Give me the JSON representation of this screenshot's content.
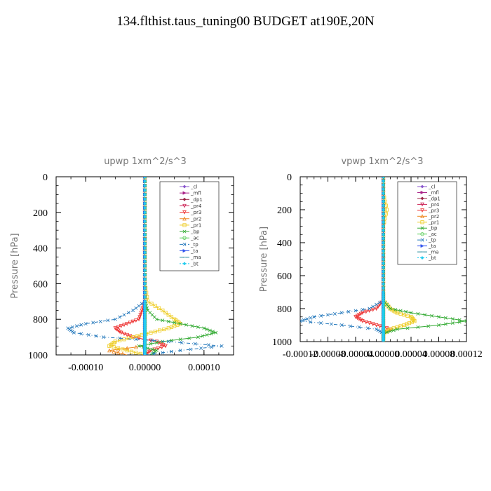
{
  "title": "134.flthist.taus_tuning00  BUDGET at190E,20N",
  "chart_data": [
    {
      "type": "line",
      "title": "upwp   1xm^2/s^3",
      "ylabel": "Pressure  [hPa]",
      "xlim": [
        -0.00015,
        0.00015
      ],
      "ylim": [
        1000,
        0
      ],
      "xticks": [
        -0.0001,
        0.0,
        0.0001
      ],
      "xtick_labels": [
        "-0.00010",
        "0.00000",
        "0.00010"
      ],
      "yticks": [
        0,
        200,
        400,
        600,
        800,
        1000
      ],
      "ytick_labels": [
        "0",
        "200",
        "400",
        "600",
        "800",
        "1000"
      ],
      "legend_position": "top-right",
      "pressure": [
        0,
        100,
        200,
        300,
        400,
        500,
        600,
        700,
        750,
        800,
        825,
        850,
        875,
        900,
        925,
        950,
        975,
        1000
      ],
      "series": [
        {
          "name": "_cl",
          "color": "#8855cc",
          "values": [
            0,
            0,
            0,
            0,
            0,
            0,
            0,
            0,
            0,
            0,
            0,
            0,
            0,
            0,
            0,
            0,
            0,
            0
          ]
        },
        {
          "name": "_mfl",
          "color": "#aa2288",
          "values": [
            0,
            0,
            0,
            0,
            0,
            0,
            0,
            0,
            0,
            0,
            0,
            0,
            0,
            0,
            0,
            0,
            0,
            0
          ]
        },
        {
          "name": "_dp1",
          "color": "#992244",
          "values": [
            0,
            0,
            0,
            0,
            0,
            0,
            0,
            0,
            0,
            0,
            0,
            0,
            0,
            0,
            0,
            0,
            0,
            0
          ]
        },
        {
          "name": "_pr4",
          "color": "#cc2255",
          "values": [
            0,
            0,
            0,
            0,
            0,
            0,
            0,
            0,
            0,
            0,
            0,
            0,
            0,
            0,
            0,
            0,
            0,
            0
          ]
        },
        {
          "name": "_pr3",
          "color": "#ee3333",
          "values": [
            0,
            0,
            0,
            0,
            0,
            0,
            0,
            0,
            -5e-06,
            -1e-05,
            -3e-05,
            -5e-05,
            -4e-05,
            -2e-05,
            2e-05,
            3.5e-05,
            1e-05,
            0
          ]
        },
        {
          "name": "_pr2",
          "color": "#ee8822",
          "values": [
            0,
            0,
            0,
            0,
            0,
            0,
            0,
            0,
            0,
            0,
            0,
            0,
            0,
            0,
            0,
            0,
            -6e-05,
            -3e-05
          ]
        },
        {
          "name": "_pr1",
          "color": "#eecc22",
          "values": [
            0,
            0,
            0,
            0,
            0,
            0,
            0,
            5e-06,
            3e-05,
            5e-05,
            6e-05,
            4e-05,
            1e-05,
            -2e-05,
            -5e-05,
            -6e-05,
            -3e-05,
            0
          ]
        },
        {
          "name": "_bp",
          "color": "#33aa33",
          "values": [
            0,
            0,
            0,
            0,
            0,
            0,
            0,
            0,
            5e-06,
            2e-05,
            6e-05,
            0.0001,
            0.00012,
            9e-05,
            3e-05,
            -1e-05,
            2e-05,
            1e-05
          ]
        },
        {
          "name": "_ac",
          "color": "#55cc55",
          "values": [
            0,
            0,
            0,
            0,
            0,
            0,
            0,
            0,
            0,
            0,
            0,
            0,
            0,
            0,
            0,
            0,
            0,
            0
          ]
        },
        {
          "name": "_tp",
          "color": "#2277bb",
          "values": [
            0,
            0,
            0,
            0,
            0,
            0,
            0,
            0,
            -2e-05,
            -5e-05,
            -0.0001,
            -0.00013,
            -0.00012,
            -7e-05,
            4e-05,
            0.00013,
            6e-05,
            0
          ]
        },
        {
          "name": "_ta",
          "color": "#3355ee",
          "values": [
            0,
            0,
            0,
            0,
            0,
            0,
            0,
            0,
            0,
            0,
            0,
            0,
            0,
            0,
            0,
            0,
            0,
            0
          ]
        },
        {
          "name": "_ma",
          "color": "#228899",
          "values": [
            0,
            0,
            0,
            0,
            0,
            0,
            0,
            0,
            0,
            0,
            0,
            0,
            0,
            0,
            0,
            0,
            0,
            0
          ]
        },
        {
          "name": "_bt",
          "color": "#22ccee",
          "values": [
            0,
            0,
            0,
            0,
            0,
            0,
            0,
            0,
            0,
            0,
            0,
            0,
            0,
            0,
            0,
            0,
            0,
            0
          ]
        }
      ]
    },
    {
      "type": "line",
      "title": "vpwp   1xm^2/s^3",
      "ylabel": "Pressure  [hPa]",
      "xlim": [
        -0.00012,
        0.00012
      ],
      "ylim": [
        1000,
        0
      ],
      "xticks": [
        -0.00012,
        -8e-05,
        -4e-05,
        0.0,
        4e-05,
        8e-05,
        0.00012
      ],
      "xtick_labels": [
        "-0.00012",
        "-0.00008",
        "-0.00004",
        "0.00000",
        "0.00004",
        "0.00008",
        "0.00012"
      ],
      "yticks": [
        0,
        200,
        400,
        600,
        800,
        1000
      ],
      "ytick_labels": [
        "0",
        "200",
        "400",
        "600",
        "800",
        "1000"
      ],
      "legend_position": "top-right",
      "pressure": [
        0,
        100,
        200,
        300,
        400,
        500,
        600,
        700,
        750,
        800,
        825,
        850,
        875,
        900,
        925,
        950,
        975,
        1000
      ],
      "series": [
        {
          "name": "_cl",
          "color": "#8855cc",
          "values": [
            0,
            0,
            0,
            0,
            0,
            0,
            0,
            0,
            0,
            0,
            0,
            0,
            0,
            0,
            0,
            0,
            0,
            0
          ]
        },
        {
          "name": "_mfl",
          "color": "#aa2288",
          "values": [
            0,
            0,
            0,
            0,
            0,
            0,
            0,
            0,
            0,
            0,
            0,
            0,
            0,
            0,
            0,
            0,
            0,
            0
          ]
        },
        {
          "name": "_dp1",
          "color": "#992244",
          "values": [
            0,
            0,
            0,
            0,
            0,
            0,
            0,
            0,
            0,
            0,
            0,
            0,
            0,
            0,
            0,
            0,
            0,
            0
          ]
        },
        {
          "name": "_pr4",
          "color": "#cc2255",
          "values": [
            0,
            0,
            0,
            0,
            0,
            0,
            0,
            0,
            0,
            0,
            0,
            0,
            0,
            0,
            0,
            0,
            0,
            0
          ]
        },
        {
          "name": "_pr3",
          "color": "#ee3333",
          "values": [
            0,
            0,
            0,
            0,
            0,
            0,
            0,
            0,
            0,
            -1e-05,
            -3e-05,
            -4e-05,
            -3e-05,
            -1e-05,
            1e-05,
            0,
            0,
            0
          ]
        },
        {
          "name": "_pr2",
          "color": "#ee8822",
          "values": [
            0,
            0,
            0,
            0,
            0,
            0,
            0,
            0,
            0,
            0,
            0,
            0,
            0,
            0,
            0,
            0,
            0,
            0
          ]
        },
        {
          "name": "_pr1",
          "color": "#eecc22",
          "values": [
            0,
            0,
            5e-06,
            0,
            0,
            0,
            0,
            0,
            0,
            1e-05,
            2e-05,
            4e-05,
            4.5e-05,
            3e-05,
            1e-05,
            0,
            0,
            0
          ]
        },
        {
          "name": "_bp",
          "color": "#33aa33",
          "values": [
            0,
            0,
            0,
            0,
            0,
            0,
            0,
            0,
            0,
            1e-05,
            4e-05,
            8e-05,
            0.00012,
            8e-05,
            2e-05,
            0,
            0,
            0
          ]
        },
        {
          "name": "_ac",
          "color": "#55cc55",
          "values": [
            0,
            0,
            0,
            0,
            0,
            0,
            0,
            0,
            0,
            0,
            0,
            0,
            0,
            0,
            0,
            0,
            0,
            0
          ]
        },
        {
          "name": "_tp",
          "color": "#2277bb",
          "values": [
            0,
            0,
            0,
            0,
            0,
            0,
            0,
            0,
            0,
            -2e-05,
            -6e-05,
            -0.0001,
            -0.00012,
            -6e-05,
            -1e-05,
            0,
            0,
            0
          ]
        },
        {
          "name": "_ta",
          "color": "#3355ee",
          "values": [
            0,
            0,
            0,
            0,
            0,
            0,
            0,
            0,
            0,
            0,
            0,
            0,
            0,
            0,
            0,
            0,
            0,
            0
          ]
        },
        {
          "name": "_ma",
          "color": "#228899",
          "values": [
            0,
            0,
            0,
            0,
            0,
            0,
            0,
            0,
            0,
            0,
            0,
            0,
            0,
            0,
            0,
            0,
            0,
            0
          ]
        },
        {
          "name": "_bt",
          "color": "#22ccee",
          "values": [
            0,
            0,
            0,
            0,
            0,
            0,
            0,
            0,
            0,
            0,
            0,
            0,
            0,
            0,
            0,
            0,
            0,
            0
          ]
        }
      ]
    }
  ]
}
